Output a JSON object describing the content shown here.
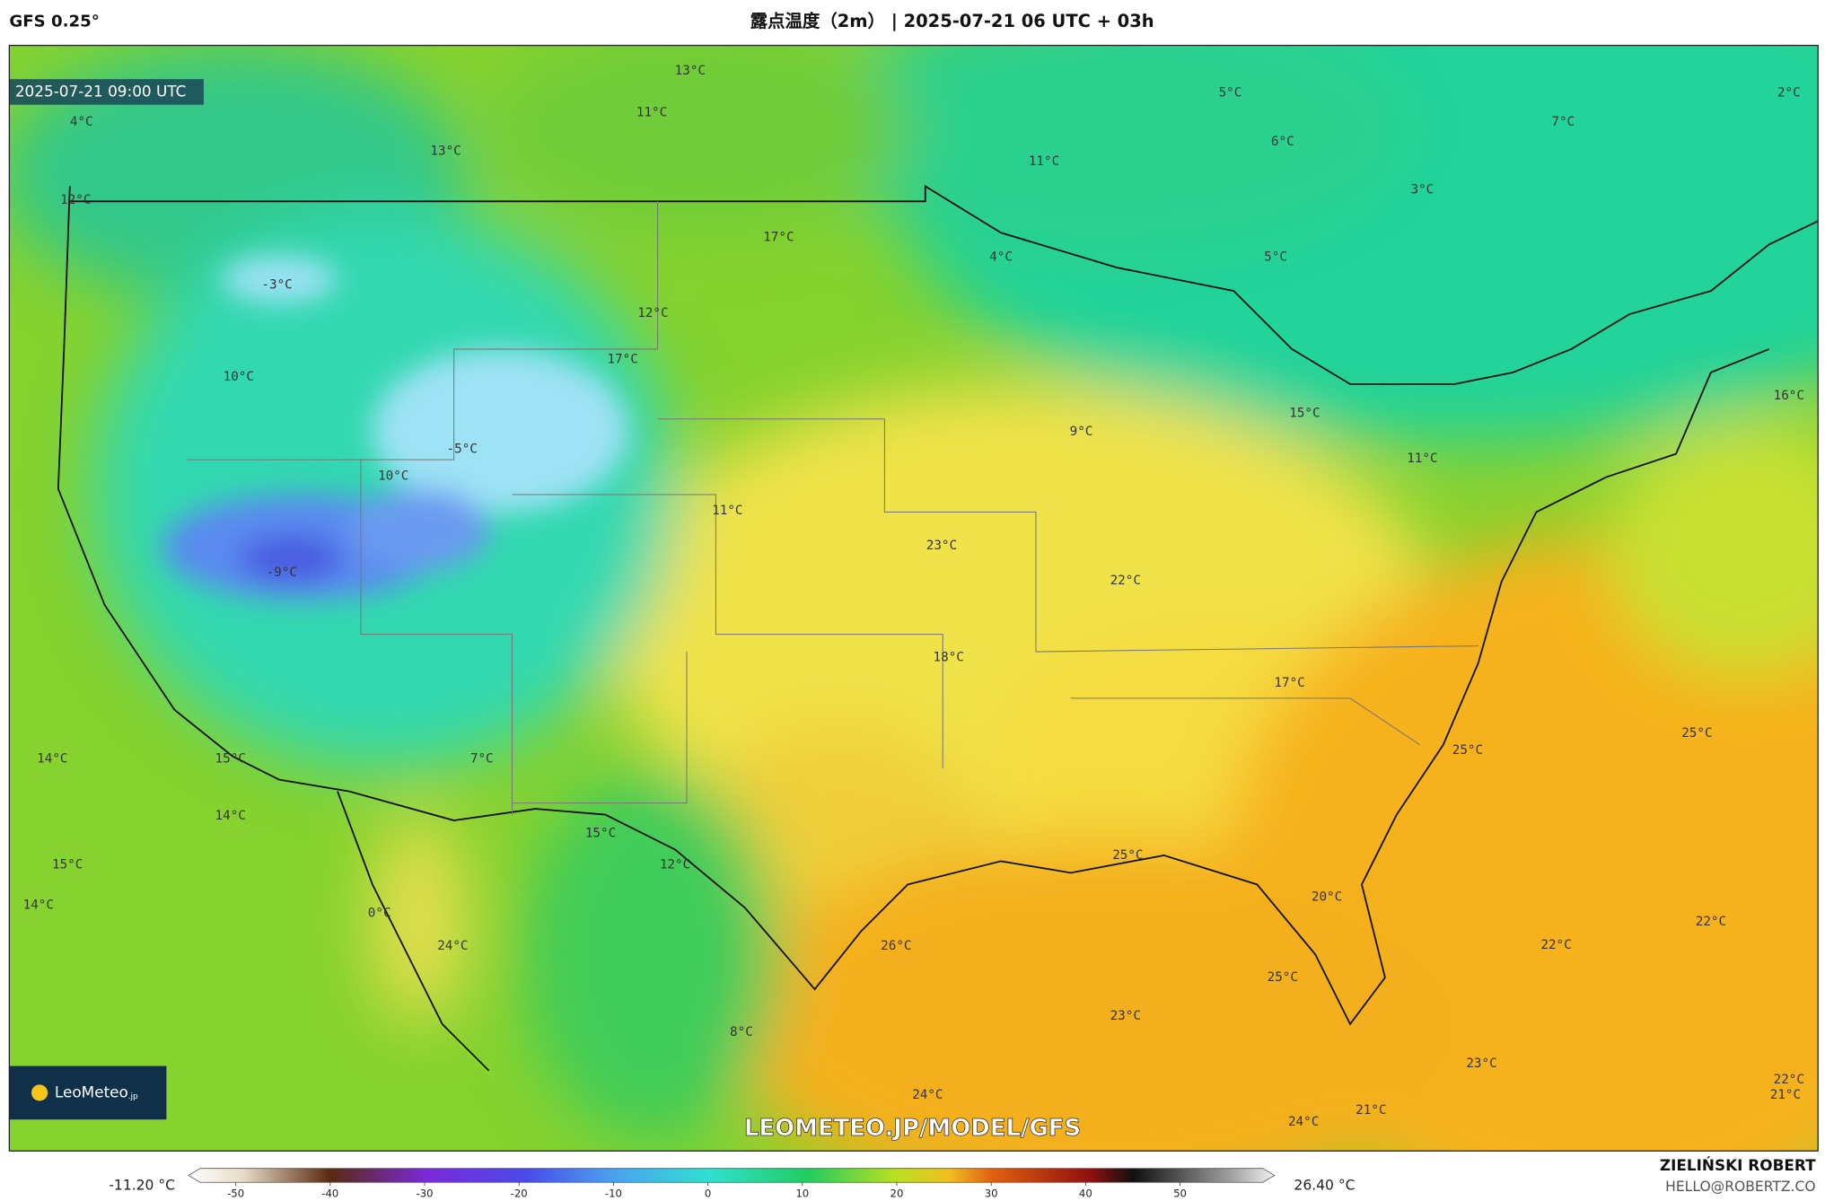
{
  "header": {
    "model": "GFS 0.25°",
    "title": "露点温度（2m） | 2025-07-21 06 UTC + 03h"
  },
  "map": {
    "valid_time": "2025-07-21 09:00 UTC",
    "watermark": "LEOMETEO.JP/MODEL/GFS",
    "logo": {
      "name": "LeoMeteo",
      "suffix": ".jp"
    },
    "labels": [
      "4°C",
      "13°C",
      "11°C",
      "13°C",
      "12°C",
      "11°C",
      "5°C",
      "6°C",
      "7°C",
      "2°C",
      "3°C",
      "4°C",
      "5°C",
      "17°C",
      "-3°C",
      "12°C",
      "17°C",
      "10°C",
      "-5°C",
      "10°C",
      "9°C",
      "15°C",
      "16°C",
      "11°C",
      "11°C",
      "23°C",
      "22°C",
      "-9°C",
      "18°C",
      "17°C",
      "25°C",
      "25°C",
      "14°C",
      "15°C",
      "7°C",
      "14°C",
      "15°C",
      "12°C",
      "15°C",
      "14°C",
      "0°C",
      "24°C",
      "25°C",
      "20°C",
      "26°C",
      "22°C",
      "22°C",
      "25°C",
      "23°C",
      "8°C",
      "23°C",
      "24°C",
      "24°C",
      "21°C",
      "22°C",
      "21°C"
    ]
  },
  "colorbar": {
    "min_label": "-11.20 °C",
    "max_label": "26.40 °C",
    "range": [
      -55,
      60
    ],
    "ticks": [
      -50,
      -40,
      -30,
      -20,
      -10,
      0,
      10,
      20,
      30,
      40,
      50
    ]
  },
  "credits": {
    "author": "ZIELIŃSKI ROBERT",
    "contact": "HELLO@ROBERTZ.CO"
  }
}
